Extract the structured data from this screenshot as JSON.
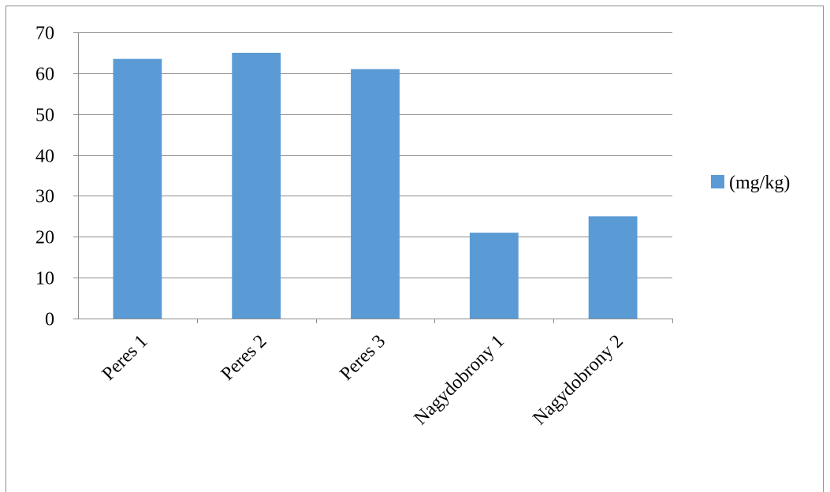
{
  "chart_data": {
    "type": "bar",
    "categories": [
      "Peres 1",
      "Peres 2",
      "Peres 3",
      "Nagydobrony 1",
      "Nagydobrony 2"
    ],
    "series": [
      {
        "name": "(mg/kg)",
        "values": [
          63.5,
          65,
          61,
          21,
          25
        ],
        "color": "#5b9bd5"
      }
    ],
    "ylim": [
      0,
      70
    ],
    "yticks": [
      0,
      10,
      20,
      30,
      40,
      50,
      60,
      70
    ],
    "grid": true,
    "legend_position": "right",
    "title": "",
    "xlabel": "",
    "ylabel": ""
  }
}
